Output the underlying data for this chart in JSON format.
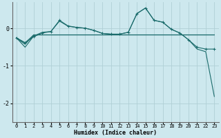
{
  "xlabel": "Humidex (Indice chaleur)",
  "bg_color": "#cde8ee",
  "grid_color": "#b0cfd6",
  "line_color": "#1a6b6b",
  "xlim": [
    -0.5,
    23.5
  ],
  "ylim": [
    -2.5,
    0.7
  ],
  "yticks": [
    -2,
    -1,
    0
  ],
  "xticks": [
    0,
    1,
    2,
    3,
    4,
    5,
    6,
    7,
    8,
    9,
    10,
    11,
    12,
    13,
    14,
    15,
    16,
    17,
    18,
    19,
    20,
    21,
    22,
    23
  ],
  "marked_x": [
    0,
    1,
    2,
    3,
    4,
    5,
    6,
    7,
    8,
    9,
    10,
    11,
    12,
    13,
    14,
    15,
    16,
    17,
    18,
    19,
    20,
    21,
    22,
    23
  ],
  "marked_y": [
    -0.25,
    -0.38,
    -0.22,
    -0.12,
    -0.08,
    0.22,
    0.07,
    0.03,
    0.01,
    -0.05,
    -0.13,
    -0.15,
    -0.15,
    -0.1,
    0.4,
    0.55,
    0.22,
    0.17,
    -0.02,
    -0.12,
    -0.3,
    -0.5,
    -0.55,
    -0.55
  ],
  "diag_x": [
    0,
    1,
    2,
    3,
    4,
    5,
    6,
    7,
    8,
    9,
    10,
    11,
    12,
    13,
    14,
    15,
    16,
    17,
    18,
    19,
    20,
    21,
    22,
    23
  ],
  "diag_y": [
    -0.25,
    -0.5,
    -0.2,
    -0.1,
    -0.08,
    0.2,
    0.06,
    0.03,
    0.01,
    -0.05,
    -0.13,
    -0.15,
    -0.15,
    -0.1,
    0.4,
    0.55,
    0.22,
    0.17,
    -0.02,
    -0.12,
    -0.3,
    -0.55,
    -0.62,
    -1.82
  ],
  "hline1_x": [
    0,
    1,
    2,
    3,
    4,
    5,
    6,
    7,
    8,
    9,
    10,
    11,
    12,
    13,
    14,
    15,
    16,
    17,
    18,
    19,
    20,
    21,
    22,
    23
  ],
  "hline1_y": [
    -0.25,
    -0.42,
    -0.17,
    -0.17,
    -0.17,
    -0.17,
    -0.17,
    -0.17,
    -0.17,
    -0.17,
    -0.17,
    -0.17,
    -0.17,
    -0.17,
    -0.17,
    -0.17,
    -0.17,
    -0.17,
    -0.17,
    -0.17,
    -0.17,
    -0.17,
    -0.17,
    -0.17
  ],
  "hline2_x": [
    0,
    1,
    2,
    3,
    4,
    5,
    6,
    7,
    8,
    9,
    10,
    11,
    12,
    13,
    14,
    15,
    16,
    17,
    18,
    19,
    20,
    21,
    22,
    23
  ],
  "hline2_y": [
    -0.25,
    -0.38,
    -0.17,
    -0.17,
    -0.17,
    -0.17,
    -0.17,
    -0.17,
    -0.17,
    -0.17,
    -0.17,
    -0.17,
    -0.17,
    -0.17,
    -0.17,
    -0.17,
    -0.17,
    -0.17,
    -0.17,
    -0.17,
    -0.17,
    -0.17,
    -0.17,
    -0.17
  ]
}
